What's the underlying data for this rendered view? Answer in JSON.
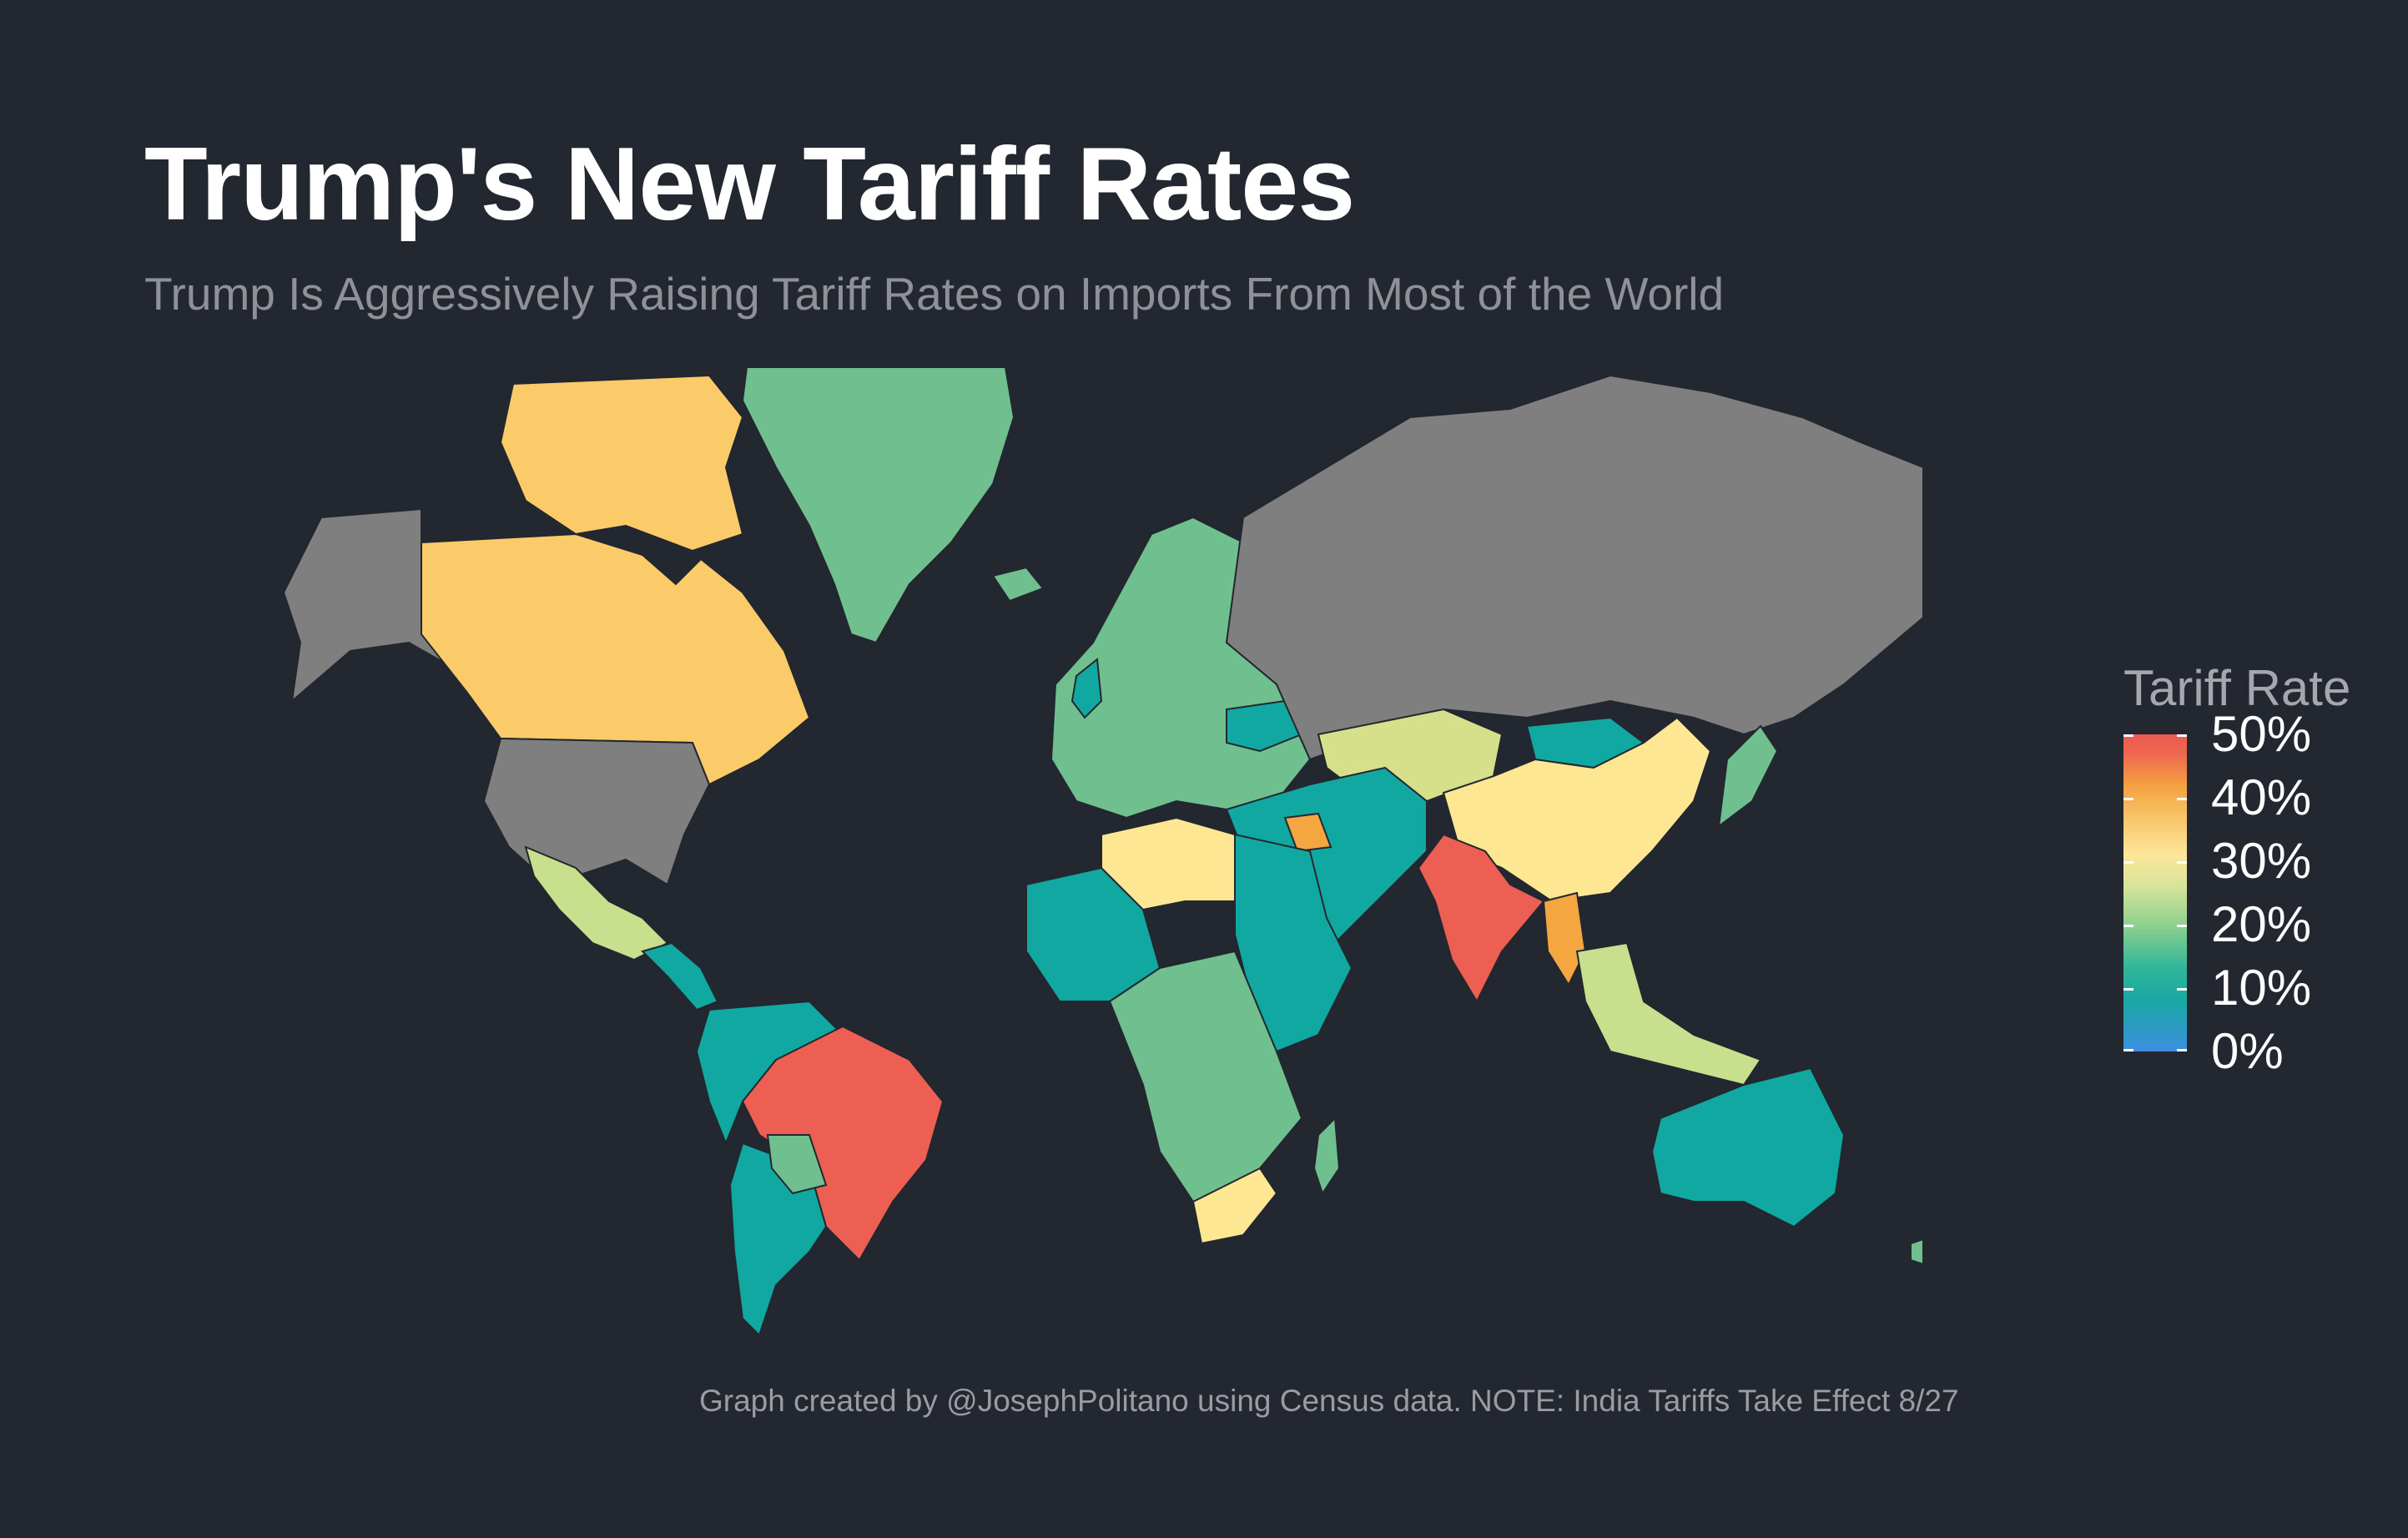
{
  "title": "Trump's New Tariff Rates",
  "subtitle": "Trump Is Aggressively Raising Tariff Rates on Imports From Most of the World",
  "caption": "Graph created by @JosephPolitano using Census data. NOTE: India Tariffs Take Effect 8/27",
  "legend": {
    "title": "Tariff Rate",
    "labels": [
      "50%",
      "40%",
      "30%",
      "20%",
      "10%",
      "0%"
    ]
  },
  "colors": {
    "background": "#23272f",
    "no_data": "#7f7f7f",
    "rate_10": "#10a8a0",
    "rate_15": "#6fbf8f",
    "rate_20": "#c8e08e",
    "rate_25": "#d6df8a",
    "rate_30": "#fde792",
    "rate_35": "#fbcb6a",
    "rate_40": "#f4a740",
    "rate_50": "#ec5f52"
  }
}
